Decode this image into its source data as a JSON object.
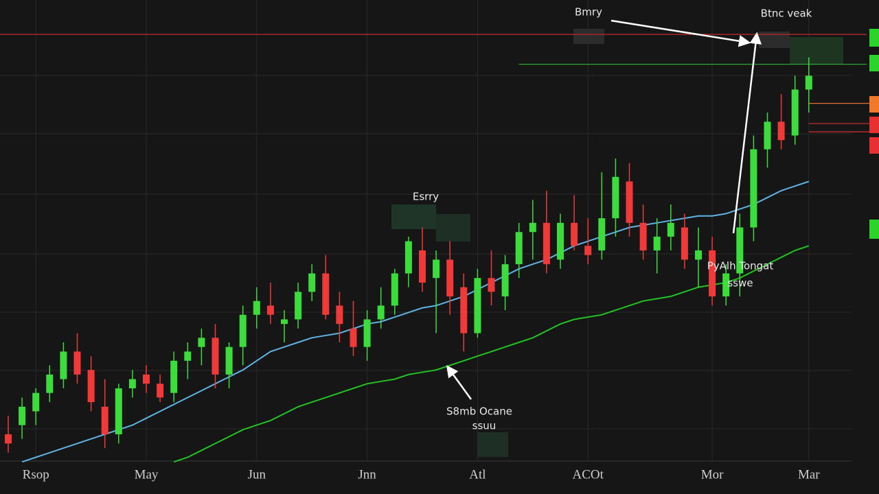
{
  "chart_data": {
    "type": "candlestick",
    "categories": [
      null,
      null,
      "Rsop",
      null,
      null,
      null,
      null,
      null,
      null,
      null,
      "May",
      null,
      null,
      null,
      null,
      null,
      null,
      null,
      "Jun",
      null,
      null,
      null,
      null,
      null,
      null,
      null,
      "Jnn",
      null,
      null,
      null,
      null,
      null,
      null,
      null,
      "Atl",
      null,
      null,
      null,
      null,
      null,
      null,
      null,
      "ACOt",
      null,
      null,
      null,
      null,
      null,
      null,
      null,
      null,
      "Mor",
      null,
      null,
      null,
      null,
      null,
      null,
      "Mar"
    ],
    "open": [
      10,
      12,
      15,
      19,
      22,
      28,
      24,
      16,
      10,
      20,
      23,
      21,
      19,
      26,
      29,
      31,
      23,
      29,
      36,
      38,
      34,
      35,
      41,
      45,
      38,
      33,
      29,
      35,
      38,
      45,
      50,
      44,
      48,
      42,
      32,
      44,
      40,
      47,
      54,
      56,
      48,
      56,
      51,
      50,
      57,
      65,
      56,
      50,
      53,
      55,
      48,
      50,
      40,
      45,
      55,
      72,
      78,
      75,
      85
    ],
    "high": [
      14,
      18,
      20,
      25,
      30,
      32,
      27,
      22,
      21,
      24,
      25,
      23,
      28,
      30,
      33,
      34,
      30,
      38,
      42,
      43,
      37,
      43,
      47,
      49,
      41,
      39,
      37,
      42,
      46,
      53,
      55,
      50,
      52,
      45,
      46,
      50,
      49,
      56,
      61,
      63,
      58,
      62,
      57,
      67,
      70,
      69,
      60,
      57,
      60,
      58,
      55,
      53,
      47,
      58,
      75,
      80,
      84,
      88,
      92
    ],
    "low": [
      6,
      9,
      12,
      17,
      20,
      21,
      15,
      7,
      8,
      18,
      19,
      17,
      17,
      22,
      25,
      20,
      20,
      25,
      33,
      34,
      30,
      33,
      39,
      35,
      30,
      27,
      26,
      33,
      36,
      42,
      41,
      32,
      36,
      28,
      31,
      38,
      37,
      44,
      48,
      45,
      46,
      50,
      47,
      48,
      53,
      53,
      48,
      45,
      50,
      46,
      42,
      38,
      38,
      40,
      52,
      68,
      72,
      73,
      80
    ],
    "close": [
      8,
      16,
      19,
      23,
      28,
      23,
      17,
      10,
      20,
      22,
      21,
      18,
      26,
      28,
      31,
      23,
      29,
      36,
      39,
      36,
      35,
      41,
      45,
      36,
      34,
      29,
      35,
      38,
      45,
      52,
      43,
      48,
      40,
      32,
      44,
      41,
      47,
      54,
      56,
      47,
      56,
      51,
      49,
      57,
      66,
      56,
      50,
      53,
      56,
      48,
      50,
      40,
      45,
      55,
      72,
      78,
      74,
      85,
      88
    ],
    "up_color": "#3ddc3d",
    "down_color": "#f03a3a",
    "moving_averages": [
      {
        "color": "#5fb4e6",
        "values": [
          null,
          4,
          5,
          6,
          7,
          8,
          9,
          10,
          11,
          12,
          13.5,
          15,
          16.5,
          18,
          19.5,
          21,
          22.5,
          24,
          26,
          28,
          29,
          30,
          31,
          31.5,
          32,
          33,
          34,
          34.5,
          35.5,
          36.5,
          37.5,
          38,
          39,
          40,
          41.5,
          43,
          44.5,
          46,
          47,
          48,
          49.5,
          51,
          52,
          53,
          54,
          55,
          55.5,
          56,
          56.5,
          57,
          57.5,
          57.5,
          58,
          59,
          60,
          61.5,
          63,
          64,
          65
        ]
      },
      {
        "color": "#22c322",
        "values": [
          null,
          null,
          null,
          null,
          null,
          null,
          null,
          null,
          null,
          null,
          null,
          null,
          4,
          5,
          6.5,
          8,
          9.5,
          11,
          12,
          13,
          14.5,
          16,
          17,
          18,
          19,
          20,
          21,
          21.5,
          22,
          23,
          23.5,
          24,
          25,
          26,
          27,
          28,
          29,
          30,
          31,
          32.5,
          34,
          35,
          35.5,
          36,
          37,
          38,
          39,
          39.5,
          40,
          41,
          42,
          42.5,
          43,
          44,
          45.5,
          47,
          48.5,
          50,
          51
        ]
      }
    ],
    "levels": [
      {
        "value": 97,
        "color": "#a82828"
      },
      {
        "value": 90.5,
        "color": "#2fa52f"
      },
      {
        "value": 82,
        "color": "#e0702a"
      },
      {
        "value": 77.6,
        "color": "#d83030"
      },
      {
        "value": 75.8,
        "color": "#d83030"
      }
    ],
    "ylim": [
      0,
      100
    ],
    "grid": true,
    "annotations": [
      "Bmry",
      "Btnc veak",
      "Esrry",
      "PyAlh Tongat",
      "sswe",
      "S8mb Ocane",
      "ssuu"
    ]
  }
}
